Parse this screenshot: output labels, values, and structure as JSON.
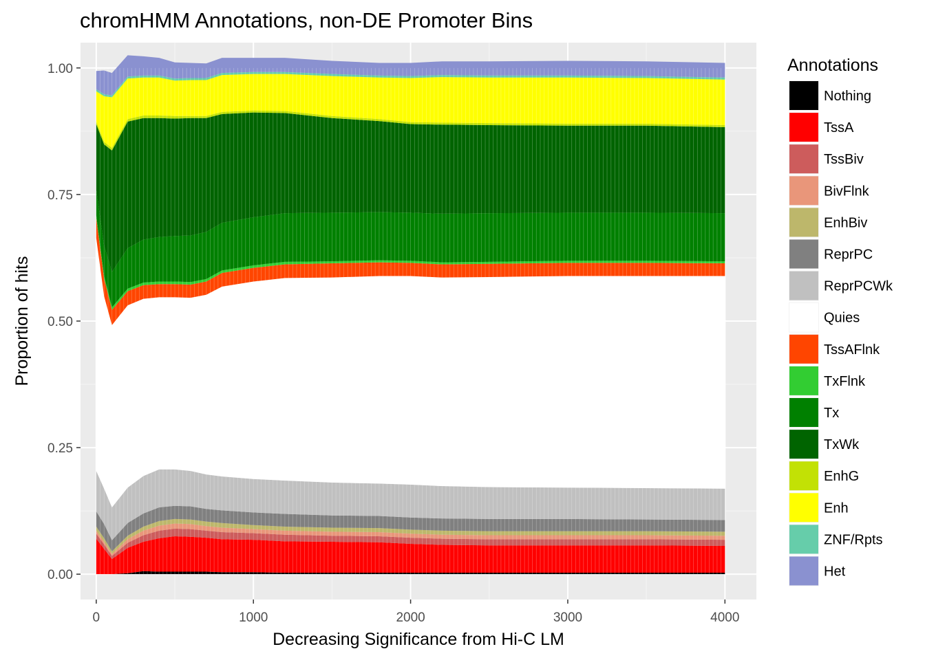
{
  "chart_data": {
    "type": "area",
    "title": "chromHMM Annotations, non-DE Promoter Bins",
    "xlabel": "Decreasing Significance from Hi-C LM",
    "ylabel": "Proportion of hits",
    "xlim": [
      -100,
      4200
    ],
    "ylim": [
      -0.05,
      1.05
    ],
    "xticks": [
      0,
      1000,
      2000,
      3000,
      4000
    ],
    "xtick_labels": [
      "0",
      "1000",
      "2000",
      "3000",
      "4000"
    ],
    "yticks": [
      0,
      0.25,
      0.5,
      0.75,
      1.0
    ],
    "ytick_labels": [
      "0.00",
      "0.25",
      "0.50",
      "0.75",
      "1.00"
    ],
    "grid": true,
    "stacked": true,
    "legend_position": "right",
    "legend_title": "Annotations",
    "x": [
      0,
      50,
      100,
      200,
      300,
      400,
      500,
      600,
      700,
      800,
      1000,
      1200,
      1500,
      1800,
      2000,
      2200,
      2500,
      3000,
      3500,
      4000
    ],
    "series": [
      {
        "name": "Nothing",
        "color": "#000000",
        "values": [
          0,
          0,
          0,
          0.002,
          0.006,
          0.005,
          0.005,
          0.005,
          0.005,
          0.004,
          0.004,
          0.003,
          0.003,
          0.003,
          0.003,
          0.003,
          0.003,
          0.003,
          0.003,
          0.003
        ]
      },
      {
        "name": "TssA",
        "color": "#ff0000",
        "values": [
          0.07,
          0.05,
          0.03,
          0.05,
          0.058,
          0.066,
          0.07,
          0.069,
          0.067,
          0.065,
          0.064,
          0.062,
          0.061,
          0.06,
          0.057,
          0.055,
          0.054,
          0.054,
          0.054,
          0.053
        ]
      },
      {
        "name": "TssBiv",
        "color": "#cd5c5c",
        "values": [
          0.01,
          0.009,
          0.006,
          0.01,
          0.013,
          0.015,
          0.015,
          0.015,
          0.014,
          0.014,
          0.013,
          0.013,
          0.012,
          0.012,
          0.012,
          0.012,
          0.012,
          0.012,
          0.012,
          0.012
        ]
      },
      {
        "name": "BivFlnk",
        "color": "#e9967a",
        "values": [
          0.006,
          0.005,
          0.004,
          0.007,
          0.009,
          0.01,
          0.01,
          0.01,
          0.009,
          0.009,
          0.008,
          0.008,
          0.008,
          0.008,
          0.008,
          0.008,
          0.008,
          0.008,
          0.008,
          0.008
        ]
      },
      {
        "name": "EnhBiv",
        "color": "#bdb76b",
        "values": [
          0.008,
          0.007,
          0.005,
          0.007,
          0.008,
          0.009,
          0.009,
          0.009,
          0.009,
          0.009,
          0.008,
          0.008,
          0.008,
          0.008,
          0.008,
          0.008,
          0.008,
          0.008,
          0.008,
          0.008
        ]
      },
      {
        "name": "ReprPC",
        "color": "#808080",
        "values": [
          0.03,
          0.028,
          0.022,
          0.025,
          0.026,
          0.027,
          0.026,
          0.026,
          0.025,
          0.025,
          0.025,
          0.025,
          0.024,
          0.024,
          0.024,
          0.024,
          0.024,
          0.024,
          0.023,
          0.023
        ]
      },
      {
        "name": "ReprPCWk",
        "color": "#c0c0c0",
        "values": [
          0.08,
          0.07,
          0.065,
          0.07,
          0.074,
          0.075,
          0.072,
          0.07,
          0.068,
          0.067,
          0.066,
          0.066,
          0.065,
          0.064,
          0.065,
          0.064,
          0.063,
          0.062,
          0.062,
          0.062
        ]
      },
      {
        "name": "Quies",
        "color": "#ffffff",
        "values": [
          0.46,
          0.38,
          0.36,
          0.36,
          0.35,
          0.34,
          0.34,
          0.342,
          0.355,
          0.375,
          0.39,
          0.4,
          0.405,
          0.41,
          0.412,
          0.412,
          0.415,
          0.418,
          0.419,
          0.42
        ]
      },
      {
        "name": "TssAFlnk",
        "color": "#ff4500",
        "values": [
          0.04,
          0.035,
          0.03,
          0.028,
          0.027,
          0.026,
          0.026,
          0.026,
          0.026,
          0.027,
          0.027,
          0.027,
          0.028,
          0.027,
          0.026,
          0.026,
          0.026,
          0.026,
          0.026,
          0.025
        ]
      },
      {
        "name": "TxFlnk",
        "color": "#32cd32",
        "values": [
          0.005,
          0.005,
          0.005,
          0.005,
          0.005,
          0.005,
          0.005,
          0.005,
          0.005,
          0.005,
          0.005,
          0.005,
          0.004,
          0.004,
          0.004,
          0.004,
          0.004,
          0.004,
          0.004,
          0.004
        ]
      },
      {
        "name": "Tx",
        "color": "#008000",
        "values": [
          0.05,
          0.06,
          0.07,
          0.08,
          0.085,
          0.088,
          0.09,
          0.092,
          0.093,
          0.094,
          0.095,
          0.096,
          0.096,
          0.095,
          0.095,
          0.096,
          0.096,
          0.095,
          0.095,
          0.095
        ]
      },
      {
        "name": "TxWk",
        "color": "#006400",
        "values": [
          0.13,
          0.2,
          0.24,
          0.25,
          0.24,
          0.235,
          0.232,
          0.232,
          0.225,
          0.215,
          0.207,
          0.198,
          0.187,
          0.18,
          0.175,
          0.176,
          0.174,
          0.172,
          0.172,
          0.17
        ]
      },
      {
        "name": "EnhG",
        "color": "#c2e105",
        "values": [
          0.005,
          0.005,
          0.005,
          0.005,
          0.005,
          0.005,
          0.005,
          0.004,
          0.004,
          0.004,
          0.004,
          0.004,
          0.004,
          0.004,
          0.004,
          0.004,
          0.004,
          0.004,
          0.004,
          0.004
        ]
      },
      {
        "name": "Enh",
        "color": "#ffff00",
        "values": [
          0.06,
          0.09,
          0.1,
          0.08,
          0.075,
          0.075,
          0.07,
          0.071,
          0.071,
          0.073,
          0.072,
          0.073,
          0.079,
          0.082,
          0.087,
          0.09,
          0.09,
          0.091,
          0.09,
          0.09
        ]
      },
      {
        "name": "ZNF/Rpts",
        "color": "#66cdaa",
        "values": [
          0.004,
          0.004,
          0.004,
          0.004,
          0.004,
          0.004,
          0.004,
          0.004,
          0.004,
          0.004,
          0.004,
          0.004,
          0.004,
          0.004,
          0.004,
          0.004,
          0.004,
          0.004,
          0.004,
          0.004
        ]
      },
      {
        "name": "Het",
        "color": "#8a91d0",
        "values": [
          0.036,
          0.047,
          0.044,
          0.042,
          0.038,
          0.035,
          0.032,
          0.03,
          0.029,
          0.03,
          0.028,
          0.028,
          0.026,
          0.025,
          0.026,
          0.027,
          0.028,
          0.029,
          0.029,
          0.029
        ]
      }
    ]
  }
}
